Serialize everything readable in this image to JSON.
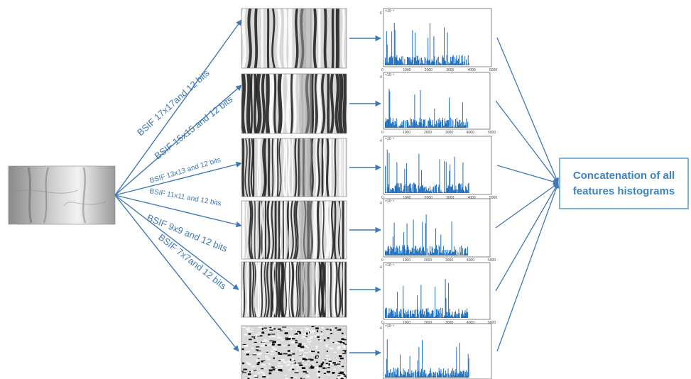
{
  "colors": {
    "arrow": "#3f78b5",
    "label": "#3f78b5",
    "bars": "#1f6fbf",
    "result_text": "#3b84c4",
    "result_border": "#7fb3d9"
  },
  "filters": [
    {
      "label": "BSIF 17x17and 12 bits",
      "pattern": "coarse"
    },
    {
      "label": "BSIF 15x15 and 12 bits",
      "pattern": "ridges-heavy"
    },
    {
      "label": "BSIF 13x13 and 12 bits",
      "pattern": "ridges"
    },
    {
      "label": "BSIF 11x11 and 12 bits",
      "pattern": "ridges-fine"
    },
    {
      "label": "BSIF 9x9 and 12 bits",
      "pattern": "ridges-finer"
    },
    {
      "label": "BSIF 7x7and 12 bits",
      "pattern": "noise"
    }
  ],
  "histograms": [
    {
      "exponent": "×10⁻³",
      "xticks": [
        "0",
        "1000",
        "2000",
        "3000",
        "4000",
        "5000"
      ],
      "ytop": "6"
    },
    {
      "exponent": "×10⁻³",
      "xticks": [
        "0",
        "1000",
        "2000",
        "3000",
        "4000",
        "5000"
      ],
      "ytop": "4"
    },
    {
      "exponent": "×10⁻³",
      "xticks": [
        "0",
        "1000",
        "2000",
        "3000",
        "4000",
        "5000"
      ],
      "ytop": "4"
    },
    {
      "exponent": "×10⁻³",
      "xticks": [
        "0",
        "1000",
        "2000",
        "3000",
        "4000",
        "5000"
      ],
      "ytop": "4"
    },
    {
      "exponent": "×10⁻³",
      "xticks": [
        "0",
        "1000",
        "2000",
        "3000",
        "4000",
        "5000"
      ],
      "ytop": "4"
    },
    {
      "exponent": "×10⁻³",
      "xticks": [
        "0",
        "1000",
        "2000",
        "3000",
        "4000",
        "5000"
      ],
      "ytop": "4"
    }
  ],
  "result": {
    "line1": "Concatenation of all",
    "line2": "features histograms"
  }
}
